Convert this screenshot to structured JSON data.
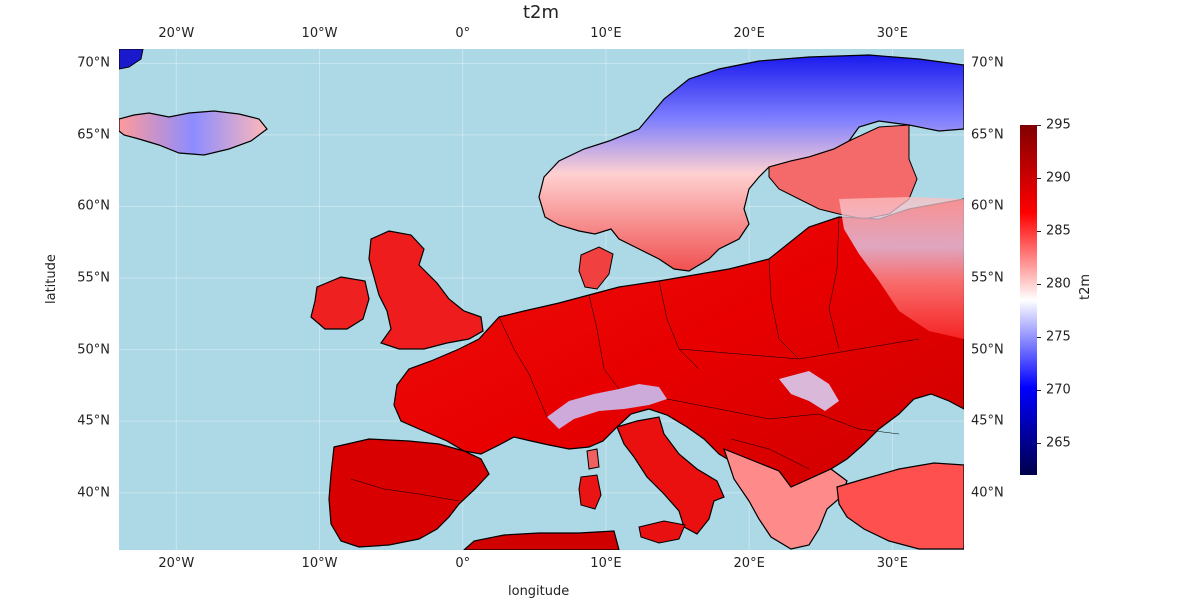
{
  "title": "t2m",
  "xlabel": "longitude",
  "ylabel": "latitude",
  "lon_range": [
    -24,
    35
  ],
  "lat_range": [
    36,
    71
  ],
  "lon_ticks": [
    {
      "value": -20,
      "label": "20°W"
    },
    {
      "value": -10,
      "label": "10°W"
    },
    {
      "value": 0,
      "label": "0°"
    },
    {
      "value": 10,
      "label": "10°E"
    },
    {
      "value": 20,
      "label": "20°E"
    },
    {
      "value": 30,
      "label": "30°E"
    }
  ],
  "lat_ticks": [
    {
      "value": 70,
      "label": "70°N"
    },
    {
      "value": 65,
      "label": "65°N"
    },
    {
      "value": 60,
      "label": "60°N"
    },
    {
      "value": 55,
      "label": "55°N"
    },
    {
      "value": 50,
      "label": "50°N"
    },
    {
      "value": 45,
      "label": "45°N"
    },
    {
      "value": 40,
      "label": "40°N"
    }
  ],
  "colorbar": {
    "label": "t2m",
    "range": [
      262,
      295
    ],
    "ticks": [
      265,
      270,
      275,
      280,
      285,
      290,
      295
    ],
    "colormap": "seismic",
    "stops": [
      "#00004c",
      "#0000ff",
      "#ffffff",
      "#ff0000",
      "#800000"
    ]
  },
  "colors": {
    "ocean": "#add8e6",
    "grid": "#ffffff"
  }
}
